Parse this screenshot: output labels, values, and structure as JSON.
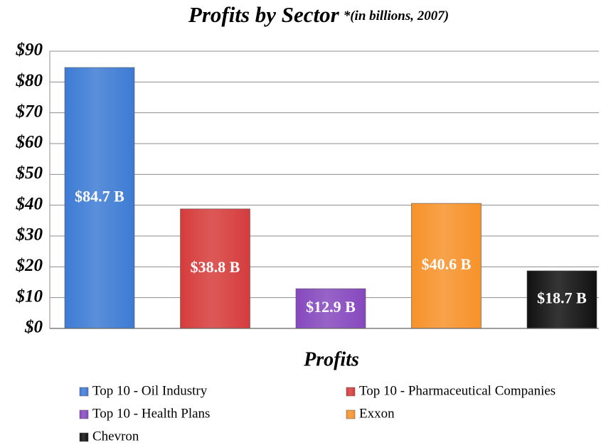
{
  "chart_data": {
    "type": "bar",
    "title": "Profits by Sector",
    "subtitle": "*(in billions, 2007)",
    "categories": [
      "Profits"
    ],
    "series": [
      {
        "name": "Top 10 - Oil Industry",
        "color": "#3d7bd4",
        "values": [
          84.7
        ],
        "value_labels": [
          "$84.7 B"
        ]
      },
      {
        "name": "Top 10 - Pharmaceutical Companies",
        "color": "#d63c3c",
        "values": [
          38.8
        ],
        "value_labels": [
          "$38.8 B"
        ]
      },
      {
        "name": "Top 10 - Health Plans",
        "color": "#8648be",
        "values": [
          12.9
        ],
        "value_labels": [
          "$12.9 B"
        ]
      },
      {
        "name": "Exxon",
        "color": "#f7922a",
        "values": [
          40.6
        ],
        "value_labels": [
          "$40.6 B"
        ]
      },
      {
        "name": "Chevron",
        "color": "#111111",
        "values": [
          18.7
        ],
        "value_labels": [
          "$18.7 B"
        ]
      }
    ],
    "ylim": [
      0,
      90
    ],
    "yticks": [
      {
        "value": 0,
        "label": "$0"
      },
      {
        "value": 10,
        "label": "$10"
      },
      {
        "value": 20,
        "label": "$20"
      },
      {
        "value": 30,
        "label": "$30"
      },
      {
        "value": 40,
        "label": "$40"
      },
      {
        "value": 50,
        "label": "$50"
      },
      {
        "value": 60,
        "label": "$60"
      },
      {
        "value": 70,
        "label": "$70"
      },
      {
        "value": 80,
        "label": "$80"
      },
      {
        "value": 90,
        "label": "$90"
      }
    ],
    "grid": true
  }
}
